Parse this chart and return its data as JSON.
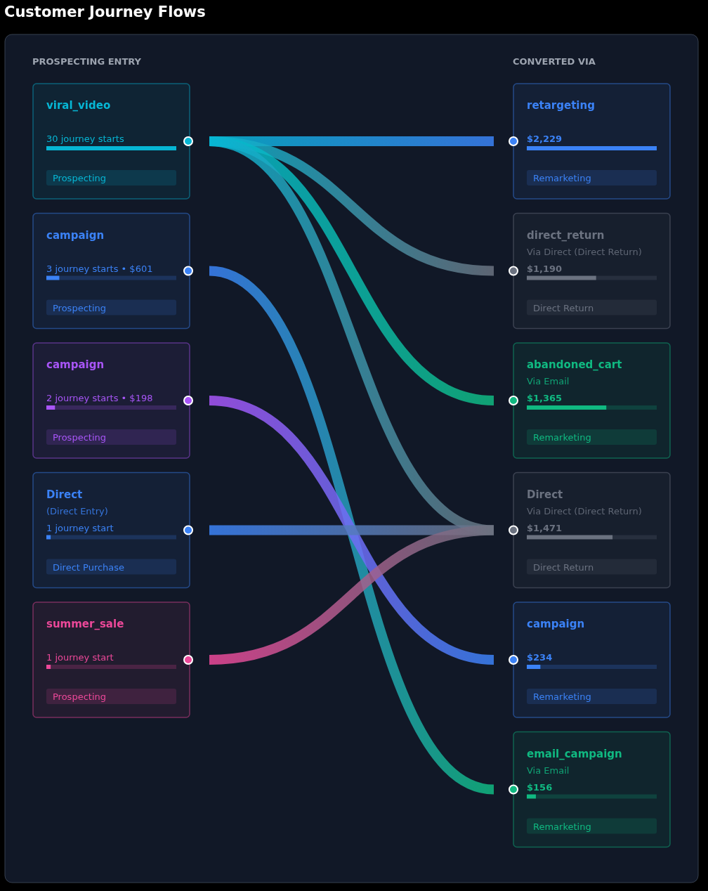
{
  "chart_data": [
    {
      "type": "other",
      "title": "Customer Journey Flows",
      "categories": [
        "viral_video",
        "campaign",
        "campaign",
        "Direct",
        "summer_sale"
      ],
      "series": [
        {
          "name": "Prospecting",
          "values": [
            30,
            3,
            2,
            null,
            1
          ],
          "colors": [
            "#06b6d4",
            "#3b82f6",
            "#a855f7",
            null,
            "#ec4899"
          ],
          "value_labels": [
            "30 journey starts",
            "3 journey starts • $601",
            "2 journey starts • $198",
            null,
            "1 journey start"
          ]
        },
        {
          "name": "Direct Purchase",
          "values": [
            null,
            null,
            null,
            1,
            null
          ],
          "colors": [
            null,
            null,
            null,
            "#3b82f6",
            null
          ],
          "value_labels": [
            null,
            null,
            null,
            "1 journey start",
            null
          ]
        },
        {
          "type": "line",
          "x": [
            "retargeting",
            "direct_return",
            "abandoned_cart",
            "Direct"
          ],
          "values": [
            null,
            null,
            null,
            null
          ]
        },
        {
          "type": "line",
          "x": [
            "email_campaign"
          ],
          "values": [
            null
          ]
        },
        {
          "type": "line",
          "x": [
            "campaign"
          ],
          "values": [
            null
          ]
        },
        {
          "type": "line",
          "x": [
            "Direct"
          ],
          "values": [
            null
          ]
        },
        {
          "type": "line",
          "x": [
            "Direct"
          ],
          "values": [
            null
          ]
        }
      ],
      "annotations": [
        "PROSPECTING ENTRY",
        {
          "text": "(Direct Entry)",
          "x": "Direct"
        }
      ]
    },
    {
      "type": "other",
      "categories": [
        "retargeting",
        "direct_return",
        "abandoned_cart",
        "Direct",
        "campaign",
        "email_campaign"
      ],
      "series": [
        {
          "name": "Remarketing",
          "values": [
            2229,
            null,
            1365,
            null,
            234,
            156
          ],
          "colors": [
            "#3b82f6",
            null,
            "#10b981",
            null,
            "#3b82f6",
            "#10b981"
          ],
          "value_labels": [
            "$2,229",
            null,
            "$1,365",
            null,
            "$234",
            "$156"
          ]
        },
        {
          "name": "Direct Return",
          "values": [
            null,
            1190,
            null,
            1471,
            null,
            null
          ],
          "colors": [
            null,
            "#6b7280",
            null,
            "#6b7280",
            null,
            null
          ],
          "value_labels": [
            null,
            "$1,190",
            null,
            "$1,471",
            null,
            null
          ]
        }
      ],
      "annotations": [
        "CONVERTED VIA",
        {
          "text": "Via Direct (Direct Return)",
          "x": "direct_return"
        },
        {
          "text": "Via Email",
          "x": "abandoned_cart"
        },
        {
          "text": "Via Direct (Direct Return)",
          "x": "Direct"
        },
        {
          "text": "Via Email",
          "x": "email_campaign"
        }
      ]
    }
  ]
}
